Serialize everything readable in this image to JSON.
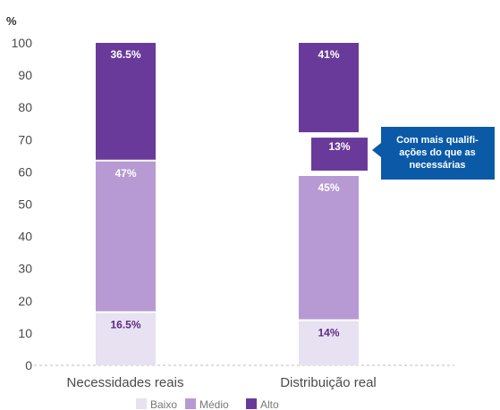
{
  "chart_data": {
    "type": "bar",
    "stacked": true,
    "ylabel": "%",
    "ylim": [
      0,
      100
    ],
    "yticks": [
      0,
      10,
      20,
      30,
      40,
      50,
      60,
      70,
      80,
      90,
      100
    ],
    "categories": [
      "Necessidades reais",
      "Distribuição real"
    ],
    "series": [
      {
        "name": "Baixo",
        "color": "#e8e1f1",
        "values": [
          16.5,
          14
        ],
        "labels": [
          "16.5%",
          "14%"
        ]
      },
      {
        "name": "Médio",
        "color": "#b79ad3",
        "values": [
          47,
          45
        ],
        "labels": [
          "47%",
          "45%"
        ]
      },
      {
        "name": "Alto",
        "color": "#6a3a9a",
        "values": [
          36.5,
          41
        ],
        "labels": [
          "36.5%",
          "41%"
        ]
      }
    ],
    "highlight": {
      "category": 1,
      "value": 13,
      "label": "13%"
    },
    "annotation": "Com mais qualifi-\nações do que as\nnecessárias",
    "legend_position": "bottom",
    "grid": false
  }
}
